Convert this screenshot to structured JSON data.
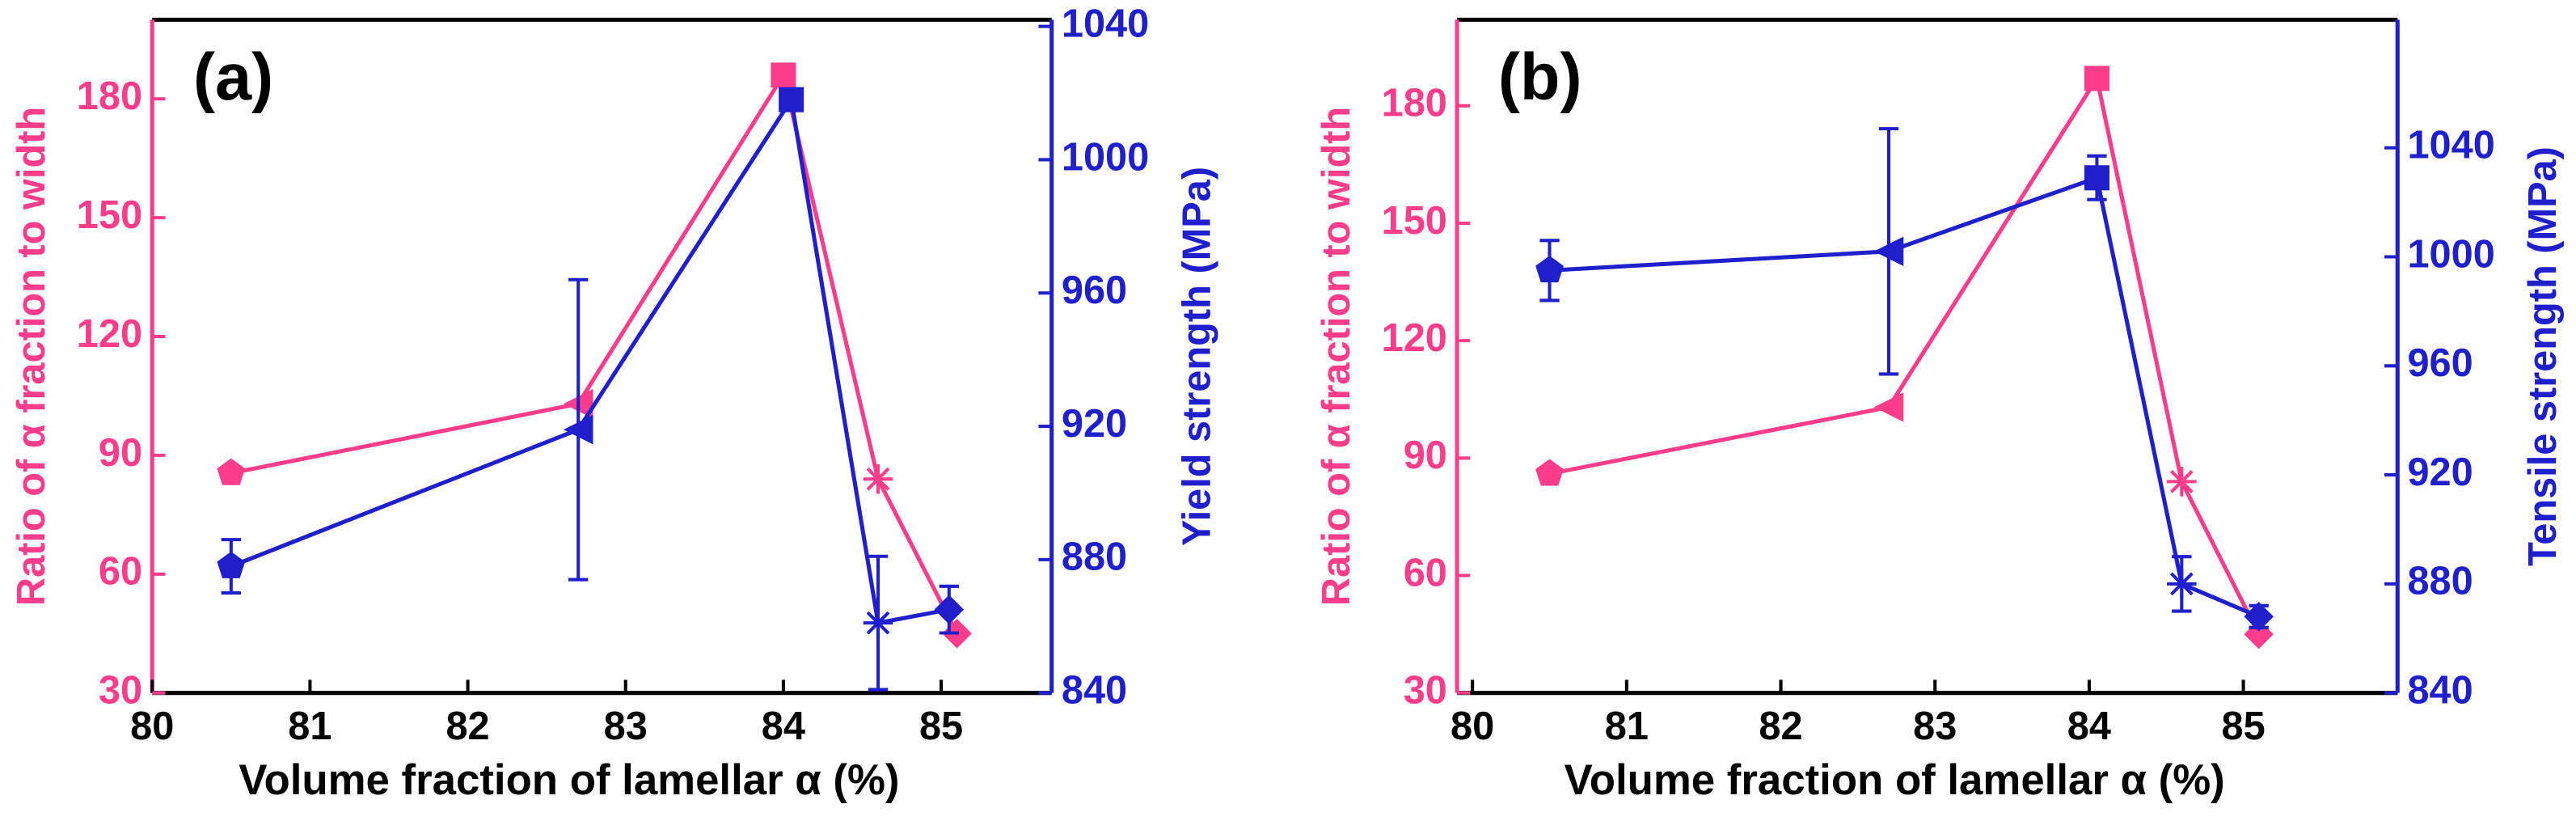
{
  "chart_data": [
    {
      "type": "line",
      "panel_label": "(a)",
      "xlabel": "Volume fraction of lamellar α (%)",
      "ylabel": "Ratio of  α fraction to  width",
      "y2label": "Yield strength (MPa)",
      "xlim": [
        80,
        85.7
      ],
      "xticks": [
        80,
        81,
        82,
        83,
        84,
        85
      ],
      "ylim": [
        30,
        200
      ],
      "yticks": [
        30,
        60,
        90,
        120,
        150,
        180
      ],
      "y2lim": [
        840,
        1042
      ],
      "y2ticks": [
        840,
        880,
        920,
        960,
        1000,
        1040
      ],
      "markers": [
        "pentagon",
        "triangle-left",
        "square",
        "asterisk",
        "diamond"
      ],
      "series": [
        {
          "color": "#ff3d8b",
          "x": [
            80.5,
            82.7,
            84.0,
            84.6,
            85.1
          ],
          "values": [
            85.5,
            103,
            186,
            84,
            45
          ]
        },
        {
          "color": "#1f1fcc",
          "axis": "y2",
          "x": [
            80.5,
            82.7,
            84.05,
            84.6,
            85.05
          ],
          "values": [
            878,
            919,
            1018,
            861,
            865
          ],
          "errors": [
            8,
            45,
            3,
            20,
            7
          ]
        }
      ]
    },
    {
      "type": "line",
      "panel_label": "(b)",
      "xlabel": "Volume fraction of lamellar α (%)",
      "ylabel": "Ratio of  α fraction to  width",
      "y2label": "Tensile strength (MPa)",
      "xlim": [
        79.9,
        86
      ],
      "xticks": [
        80,
        81,
        82,
        83,
        84,
        85
      ],
      "ylim": [
        30,
        202
      ],
      "yticks": [
        30,
        60,
        90,
        120,
        150,
        180
      ],
      "y2lim": [
        840,
        1087
      ],
      "y2ticks": [
        840,
        880,
        920,
        960,
        1000,
        1040
      ],
      "markers": [
        "pentagon",
        "triangle-left",
        "square",
        "asterisk",
        "diamond"
      ],
      "series": [
        {
          "color": "#ff3d8b",
          "x": [
            80.5,
            82.7,
            84.05,
            84.6,
            85.1
          ],
          "values": [
            86,
            103,
            187,
            84,
            45
          ]
        },
        {
          "color": "#1f1fcc",
          "axis": "y2",
          "x": [
            80.5,
            82.7,
            84.05,
            84.6,
            85.1
          ],
          "values": [
            995,
            1002,
            1029,
            880,
            868
          ],
          "errors": [
            11,
            45,
            8,
            10,
            4
          ]
        }
      ]
    }
  ]
}
